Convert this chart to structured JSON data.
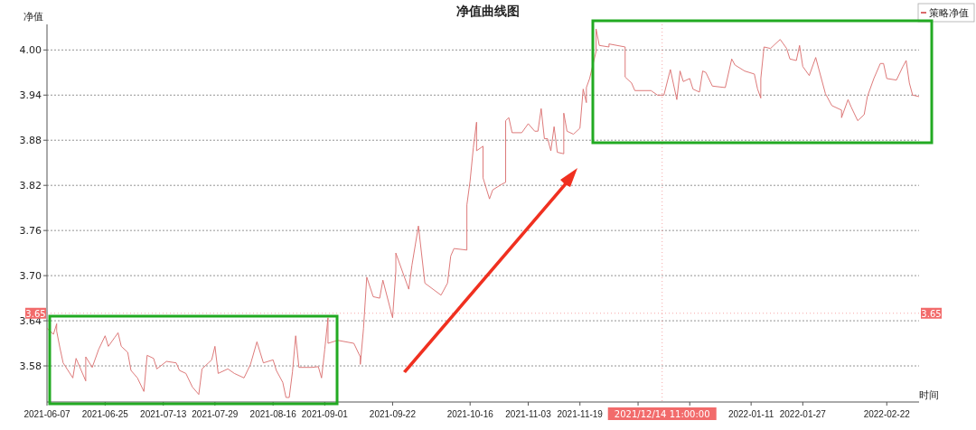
{
  "chart_data": {
    "type": "line",
    "title": "净值曲线图",
    "xlabel": "时间",
    "ylabel": "净值",
    "x": [
      "2021-06-07",
      "2021-06-09",
      "2021-06-10",
      "2021-06-10",
      "2021-06-11",
      "2021-06-12",
      "2021-06-15",
      "2021-06-16",
      "2021-06-19",
      "2021-06-19",
      "2021-06-21",
      "2021-06-23",
      "2021-06-25",
      "2021-06-26",
      "2021-06-28",
      "2021-06-29",
      "2021-06-30",
      "2021-07-02",
      "2021-07-03",
      "2021-07-05",
      "2021-07-07",
      "2021-07-08",
      "2021-07-10",
      "2021-07-11",
      "2021-07-14",
      "2021-07-17",
      "2021-07-18",
      "2021-07-20",
      "2021-07-22",
      "2021-07-24",
      "2021-07-25",
      "2021-07-27",
      "2021-07-28",
      "2021-07-29",
      "2021-07-30",
      "2021-08-02",
      "2021-08-04",
      "2021-08-07",
      "2021-08-09",
      "2021-08-11",
      "2021-08-12",
      "2021-08-13",
      "2021-08-16",
      "2021-08-17",
      "2021-08-19",
      "2021-08-20",
      "2021-08-21",
      "2021-08-22",
      "2021-08-23",
      "2021-08-24",
      "2021-08-28",
      "2021-08-30",
      "2021-08-31",
      "2021-09-01",
      "2021-09-02",
      "2021-09-02",
      "2021-09-05",
      "2021-09-10",
      "2021-09-12",
      "2021-09-12",
      "2021-09-13",
      "2021-09-14",
      "2021-09-16",
      "2021-09-18",
      "2021-09-19",
      "2021-09-22",
      "2021-09-23",
      "2021-09-23",
      "2021-09-27",
      "2021-09-28",
      "2021-09-30",
      "2021-10-02",
      "2021-10-07",
      "2021-10-09",
      "2021-10-10",
      "2021-10-11",
      "2021-10-15",
      "2021-10-15",
      "2021-10-16",
      "2021-10-17",
      "2021-10-18",
      "2021-10-18",
      "2021-10-20",
      "2021-10-20",
      "2021-10-22",
      "2021-10-23",
      "2021-10-26",
      "2021-10-27",
      "2021-10-27",
      "2021-10-28",
      "2021-10-29",
      "2021-11-01",
      "2021-11-03",
      "2021-11-05",
      "2021-11-06",
      "2021-11-07",
      "2021-11-08",
      "2021-11-09",
      "2021-11-10",
      "2021-11-11",
      "2021-11-12",
      "2021-11-14",
      "2021-11-14",
      "2021-11-15",
      "2021-11-17",
      "2021-11-19",
      "2021-11-20",
      "2021-11-21",
      "2021-11-21",
      "2021-11-22",
      "2021-11-24",
      "2021-11-24",
      "2021-11-25",
      "2021-11-28",
      "2021-11-28",
      "2021-12-03",
      "2021-12-03",
      "2021-12-05",
      "2021-12-06",
      "2021-12-11",
      "2021-12-13",
      "2021-12-15",
      "2021-12-17",
      "2021-12-19",
      "2021-12-20",
      "2021-12-21",
      "2021-12-23",
      "2021-12-24",
      "2021-12-26",
      "2021-12-27",
      "2021-12-28",
      "2021-12-30",
      "2022-01-03",
      "2022-01-05",
      "2022-01-06",
      "2022-01-09",
      "2022-01-12",
      "2022-01-13",
      "2022-01-14",
      "2022-01-14",
      "2022-01-15",
      "2022-01-17",
      "2022-01-18",
      "2022-01-20",
      "2022-01-22",
      "2022-01-23",
      "2022-01-25",
      "2022-01-26",
      "2022-01-27",
      "2022-01-29",
      "2022-01-31",
      "2022-02-01",
      "2022-02-03",
      "2022-02-05",
      "2022-02-08",
      "2022-02-08",
      "2022-02-10",
      "2022-02-11",
      "2022-02-13",
      "2022-02-15",
      "2022-02-16",
      "2022-02-18",
      "2022-02-20",
      "2022-02-21",
      "2022-02-22",
      "2022-02-25",
      "2022-02-27",
      "2022-02-28",
      "2022-03-01",
      "2022-03-02",
      "2022-03-04"
    ],
    "series": [
      {
        "name": "策略净值",
        "color": "#d96b6b",
        "values": [
          3.63,
          3.622,
          3.636,
          3.626,
          3.604,
          3.584,
          3.564,
          3.59,
          3.56,
          3.592,
          3.578,
          3.602,
          3.62,
          3.606,
          3.618,
          3.624,
          3.606,
          3.598,
          3.574,
          3.564,
          3.546,
          3.594,
          3.59,
          3.576,
          3.586,
          3.584,
          3.574,
          3.57,
          3.552,
          3.542,
          3.576,
          3.584,
          3.588,
          3.606,
          3.57,
          3.576,
          3.57,
          3.564,
          3.582,
          3.612,
          3.598,
          3.584,
          3.588,
          3.574,
          3.558,
          3.538,
          3.538,
          3.572,
          3.62,
          3.578,
          3.578,
          3.579,
          3.564,
          3.602,
          3.644,
          3.61,
          3.614,
          3.61,
          3.592,
          3.582,
          3.63,
          3.698,
          3.672,
          3.67,
          3.694,
          3.644,
          3.706,
          3.73,
          3.682,
          3.714,
          3.766,
          3.69,
          3.674,
          3.69,
          3.726,
          3.736,
          3.734,
          3.794,
          3.826,
          3.87,
          3.904,
          3.866,
          3.872,
          3.83,
          3.802,
          3.814,
          3.822,
          3.824,
          3.906,
          3.91,
          3.89,
          3.89,
          3.902,
          3.892,
          3.892,
          3.922,
          3.882,
          3.882,
          3.866,
          3.898,
          3.864,
          3.862,
          3.916,
          3.892,
          3.888,
          3.896,
          3.948,
          3.93,
          3.95,
          3.962,
          3.998,
          4.028,
          4.006,
          4.004,
          4.008,
          4.004,
          3.964,
          3.956,
          3.946,
          3.946,
          3.94,
          3.94,
          3.974,
          3.934,
          3.972,
          3.958,
          3.962,
          3.948,
          3.944,
          3.972,
          3.97,
          3.952,
          3.95,
          3.988,
          3.98,
          3.972,
          3.968,
          3.948,
          3.936,
          3.962,
          4.004,
          4.002,
          4.006,
          4.014,
          4.002,
          3.988,
          3.986,
          4.006,
          3.978,
          3.966,
          3.99,
          3.974,
          3.942,
          3.926,
          3.92,
          3.91,
          3.934,
          3.924,
          3.906,
          3.914,
          3.938,
          3.962,
          3.982,
          3.982,
          3.962,
          3.96,
          3.978,
          3.986,
          3.956,
          3.94,
          3.938
        ]
      }
    ],
    "xlim": [
      "2021-06-07",
      "2022-03-04"
    ],
    "ylim": [
      3.532,
      4.034
    ],
    "xticks": [
      {
        "value": "2021-06-07",
        "label": "2021-06-07"
      },
      {
        "value": "2021-06-25",
        "label": "2021-06-25"
      },
      {
        "value": "2021-07-13",
        "label": "2021-07-13"
      },
      {
        "value": "2021-07-29",
        "label": "2021-07-29"
      },
      {
        "value": "2021-08-16",
        "label": "2021-08-16"
      },
      {
        "value": "2021-09-01",
        "label": "2021-09-01"
      },
      {
        "value": "2021-09-22",
        "label": "2021-09-22"
      },
      {
        "value": "2021-10-16",
        "label": "2021-10-16"
      },
      {
        "value": "2021-11-03",
        "label": "2021-11-03"
      },
      {
        "value": "2021-11-19",
        "label": "2021-11-19"
      },
      {
        "value": "2021-12-07",
        "label": null
      },
      {
        "value": "2021-12-23",
        "label": null
      },
      {
        "value": "2022-01-11",
        "label": "2022-01-11"
      },
      {
        "value": "2022-01-27",
        "label": "2022-01-27"
      },
      {
        "value": "2022-02-22",
        "label": "2022-02-22"
      }
    ],
    "yticks": [
      3.58,
      {
        "value": 3.64,
        "label": "3.64"
      },
      {
        "value": 3.7,
        "label": "3.70"
      },
      3.76,
      3.82,
      3.88,
      3.94,
      {
        "value": 4.0,
        "label": "4.00"
      }
    ],
    "grid": "y",
    "legend": "top right",
    "ref_lines": [
      {
        "axis": "y",
        "value": 3.65,
        "label": "3.65",
        "color": "#f26b6b",
        "line_style": "dotted"
      },
      {
        "axis": "x",
        "value": "2021-12-14T11:00",
        "label": "2021/12/14 11:00:00",
        "color": "#f26b6b",
        "line_style": "dotted"
      }
    ]
  }
}
